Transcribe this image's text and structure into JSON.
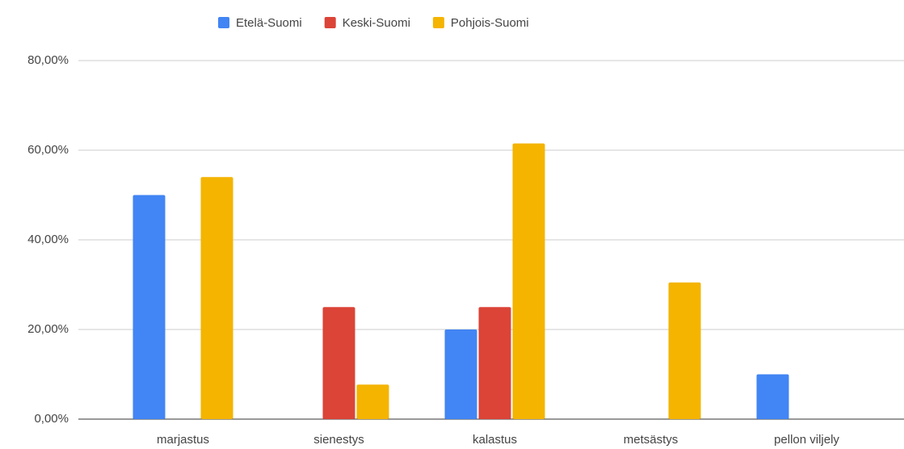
{
  "chart_data": {
    "type": "bar",
    "categories": [
      "marjastus",
      "sienestys",
      "kalastus",
      "metsästys",
      "pellon viljely"
    ],
    "series": [
      {
        "name": "Etelä-Suomi",
        "color": "#4285f4",
        "values": [
          50,
          0,
          20,
          0,
          10
        ]
      },
      {
        "name": "Keski-Suomi",
        "color": "#db4437",
        "values": [
          0,
          25,
          25,
          0,
          0
        ]
      },
      {
        "name": "Pohjois-Suomi",
        "color": "#f4b400",
        "values": [
          54,
          7.7,
          61.5,
          30.5,
          0
        ]
      }
    ],
    "ylim": [
      0,
      80
    ],
    "yticks": [
      {
        "value": 0,
        "label": "0,00%"
      },
      {
        "value": 20,
        "label": "20,00%"
      },
      {
        "value": 40,
        "label": "40,00%"
      },
      {
        "value": 60,
        "label": "60,00%"
      },
      {
        "value": 80,
        "label": "80,00%"
      }
    ],
    "grid": true,
    "legend": "top"
  }
}
